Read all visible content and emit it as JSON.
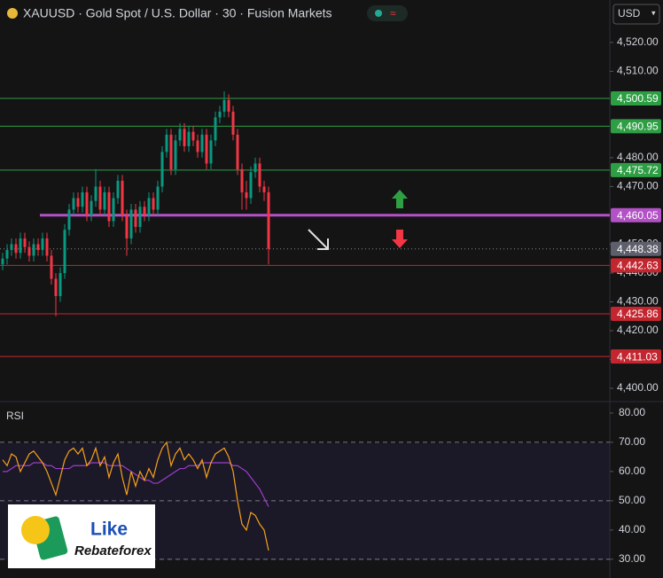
{
  "chart_data": {
    "type": "candlestick",
    "title": "XAUUSD · Gold Spot / U.S. Dollar · 30 · Fusion Markets",
    "currency": "USD",
    "up_color": "#089981",
    "down_color": "#f23645",
    "open": [
      4443,
      4445,
      4448,
      4450,
      4447,
      4452,
      4449,
      4446,
      4450,
      4448,
      4452,
      4446,
      4438,
      4432,
      4440,
      4455,
      4462,
      4466,
      4463,
      4468,
      4460,
      4465,
      4470,
      4462,
      4468,
      4458,
      4466,
      4472,
      4460,
      4452,
      4462,
      4456,
      4463,
      4460,
      4466,
      4462,
      4470,
      4482,
      4488,
      4476,
      4486,
      4490,
      4484,
      4489,
      4486,
      4482,
      4488,
      4478,
      4486,
      4494,
      4496,
      4500,
      4496,
      4488,
      4476,
      4468,
      4466,
      4475,
      4478,
      4470,
      4468
    ],
    "high": [
      4447,
      4450,
      4452,
      4452,
      4454,
      4454,
      4451,
      4452,
      4452,
      4454,
      4454,
      4448,
      4440,
      4442,
      4457,
      4464,
      4468,
      4468,
      4470,
      4470,
      4467,
      4476,
      4472,
      4470,
      4470,
      4468,
      4474,
      4474,
      4462,
      4464,
      4464,
      4465,
      4465,
      4468,
      4468,
      4472,
      4484,
      4490,
      4490,
      4488,
      4492,
      4492,
      4491,
      4491,
      4488,
      4490,
      4490,
      4488,
      4496,
      4498,
      4503,
      4502,
      4498,
      4490,
      4478,
      4472,
      4477,
      4480,
      4480,
      4472,
      4470
    ],
    "low": [
      4441,
      4443,
      4446,
      4445,
      4445,
      4447,
      4444,
      4444,
      4446,
      4446,
      4444,
      4436,
      4425,
      4430,
      4438,
      4453,
      4460,
      4461,
      4461,
      4458,
      4458,
      4463,
      4460,
      4460,
      4456,
      4456,
      4464,
      4458,
      4446,
      4450,
      4454,
      4454,
      4458,
      4458,
      4460,
      4460,
      4468,
      4480,
      4474,
      4474,
      4484,
      4482,
      4482,
      4484,
      4480,
      4480,
      4476,
      4476,
      4484,
      4492,
      4494,
      4494,
      4486,
      4474,
      4462,
      4462,
      4464,
      4473,
      4468,
      4465,
      4443
    ],
    "close": [
      4445,
      4448,
      4450,
      4447,
      4452,
      4449,
      4446,
      4450,
      4448,
      4452,
      4446,
      4438,
      4432,
      4440,
      4455,
      4462,
      4466,
      4463,
      4468,
      4460,
      4465,
      4470,
      4462,
      4468,
      4458,
      4466,
      4472,
      4460,
      4452,
      4462,
      4456,
      4463,
      4460,
      4466,
      4462,
      4470,
      4482,
      4488,
      4476,
      4486,
      4490,
      4484,
      4489,
      4486,
      4482,
      4488,
      4478,
      4486,
      4494,
      4496,
      4500,
      4496,
      4488,
      4476,
      4468,
      4466,
      4475,
      4478,
      4470,
      4468,
      4448.38
    ],
    "ylim": [
      4395.7,
      4525.5
    ],
    "yticks": [
      {
        "value": 4400,
        "label": "4,400.00"
      },
      {
        "value": 4410,
        "label": "4,410.00"
      },
      {
        "value": 4420,
        "label": "4,420.00"
      },
      {
        "value": 4430,
        "label": "4,430.00"
      },
      {
        "value": 4440,
        "label": "4,440.00"
      },
      {
        "value": 4450,
        "label": "4,450.00"
      },
      {
        "value": 4470,
        "label": "4,470.00"
      },
      {
        "value": 4480,
        "label": "4,480.00"
      },
      {
        "value": 4510,
        "label": "4,510.00"
      },
      {
        "value": 4520,
        "label": "4,520.00"
      }
    ],
    "levels": [
      {
        "value": 4500.59,
        "label": "4,500.59",
        "color": "#2e9e44"
      },
      {
        "value": 4490.95,
        "label": "4,490.95",
        "color": "#2e9e44"
      },
      {
        "value": 4475.72,
        "label": "4,475.72",
        "color": "#2e9e44"
      },
      {
        "value": 4460.05,
        "label": "4,460.05",
        "color": "#b351c6"
      },
      {
        "value": 4442.63,
        "label": "4,442.63",
        "color": "#c4262f"
      },
      {
        "value": 4425.86,
        "label": "4,425.86",
        "color": "#c4262f"
      },
      {
        "value": 4411.03,
        "label": "4,411.03",
        "color": "#c4262f"
      }
    ],
    "last_price": {
      "value": 4448.38,
      "label": "4,448.38",
      "color": "#5d606b"
    },
    "rsi": {
      "name": "RSI",
      "color": "#f7a21b",
      "ma_color": "#9c3fc9",
      "values": [
        64,
        62,
        66,
        65,
        60,
        63,
        66,
        67,
        65,
        63,
        60,
        56,
        52,
        58,
        64,
        67,
        68,
        66,
        68,
        62,
        64,
        68,
        62,
        65,
        58,
        63,
        66,
        58,
        52,
        60,
        55,
        60,
        57,
        61,
        58,
        64,
        68,
        70,
        62,
        66,
        68,
        64,
        66,
        64,
        61,
        64,
        58,
        63,
        66,
        67,
        68,
        65,
        60,
        50,
        42,
        40,
        46,
        45,
        42,
        40,
        33
      ],
      "ma": [
        60,
        60,
        61,
        62,
        62,
        62,
        62,
        63,
        63,
        63,
        62,
        62,
        61,
        61,
        61,
        61,
        62,
        62,
        62,
        62,
        63,
        63,
        63,
        63,
        62,
        62,
        62,
        62,
        61,
        60,
        59,
        58,
        57,
        57,
        56,
        56,
        57,
        58,
        59,
        60,
        61,
        61,
        62,
        62,
        62,
        63,
        63,
        63,
        63,
        63,
        63,
        63,
        62,
        62,
        61,
        60,
        58,
        56,
        54,
        51,
        48
      ],
      "ylim": [
        23.6,
        83.3
      ],
      "yticks": [
        {
          "value": 30,
          "label": "30.00"
        },
        {
          "value": 40,
          "label": "40.00"
        },
        {
          "value": 50,
          "label": "50.00"
        },
        {
          "value": 60,
          "label": "60.00"
        },
        {
          "value": 70,
          "label": "70.00"
        },
        {
          "value": 80,
          "label": "80.00"
        }
      ],
      "bands": [
        70,
        50,
        30
      ]
    }
  },
  "logo": {
    "line1": "Like",
    "line2": "Rebateforex"
  }
}
